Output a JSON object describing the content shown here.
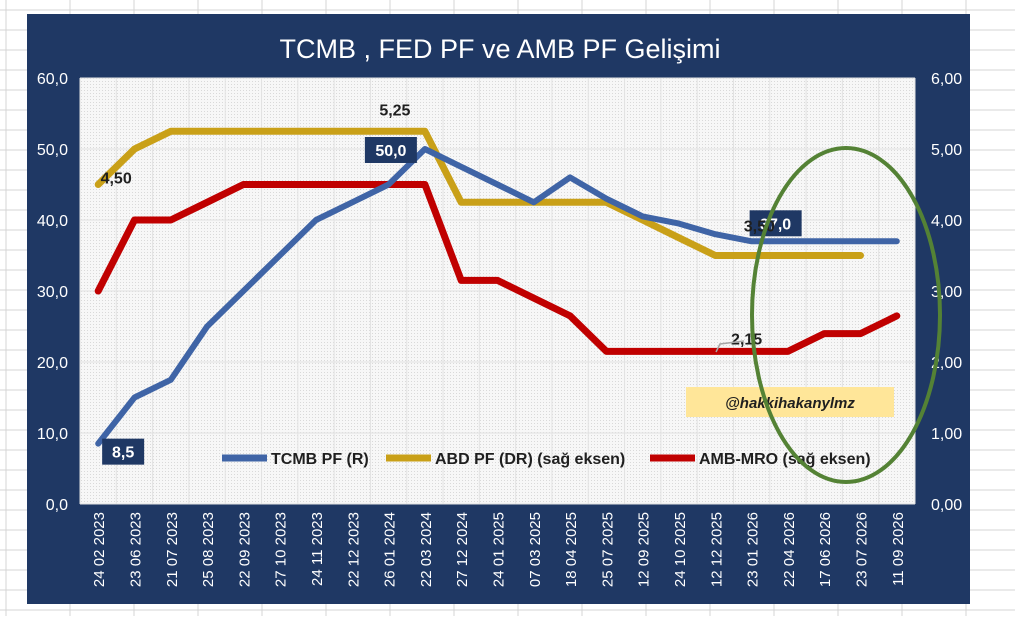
{
  "chart_data": {
    "type": "line",
    "title": "TCMB , FED PF ve AMB PF Gelişimi",
    "watermark": "@hakkihakanylmz",
    "categories": [
      "24 02 2023",
      "23 06 2023",
      "21 07 2023",
      "25 08 2023",
      "22 09 2023",
      "27 10 2023",
      "24 11 2023",
      "22 12 2023",
      "26 01 2024",
      "22 03 2024",
      "27 12 2024",
      "24 01 2025",
      "07 03 2025",
      "18 04 2025",
      "25 07 2025",
      "12 09 2025",
      "24 10 2025",
      "12 12 2025",
      "23 01 2026",
      "22 04 2026",
      "17 06 2026",
      "23 07 2026",
      "11 09 2026"
    ],
    "left_axis": {
      "min": 0,
      "max": 60,
      "ticks": [
        "0,0",
        "10,0",
        "20,0",
        "30,0",
        "40,0",
        "50,0",
        "60,0"
      ]
    },
    "right_axis": {
      "min": 0,
      "max": 6,
      "ticks": [
        "0,00",
        "1,00",
        "2,00",
        "3,00",
        "4,00",
        "5,00",
        "6,00"
      ]
    },
    "series": [
      {
        "name": "TCMB PF (R)",
        "axis": "left",
        "color": "#3f64a6",
        "values": [
          8.5,
          15,
          17.5,
          25,
          30,
          35,
          40,
          42.5,
          45,
          50,
          47.5,
          45,
          42.5,
          46,
          43,
          40.5,
          39.5,
          38,
          37,
          37,
          37,
          37,
          37
        ]
      },
      {
        "name": "ABD PF (DR) (sağ eksen)",
        "axis": "right",
        "color": "#c9a018",
        "values": [
          4.5,
          5.0,
          5.25,
          5.25,
          5.25,
          5.25,
          5.25,
          5.25,
          5.25,
          5.25,
          4.25,
          4.25,
          4.25,
          4.25,
          4.25,
          4.0,
          3.75,
          3.5,
          3.5,
          3.5,
          3.5,
          3.5,
          null
        ]
      },
      {
        "name": "AMB-MRO (sağ eksen)",
        "axis": "right",
        "color": "#c00000",
        "values": [
          3.0,
          4.0,
          4.0,
          4.25,
          4.5,
          4.5,
          4.5,
          4.5,
          4.5,
          4.5,
          3.15,
          3.15,
          2.9,
          2.65,
          2.15,
          2.15,
          2.15,
          2.15,
          2.15,
          2.15,
          2.4,
          2.4,
          2.65
        ]
      }
    ],
    "annotations": [
      {
        "series": 0,
        "index": 0,
        "text": "8,5",
        "boxed": true
      },
      {
        "series": 0,
        "index": 9,
        "text": "50,0",
        "boxed": true
      },
      {
        "series": 0,
        "index": 18,
        "text": "37,0",
        "boxed": true
      },
      {
        "series": 1,
        "index": 0,
        "text": "4,50",
        "boxed": false
      },
      {
        "series": 1,
        "index": 9,
        "text": "5,25",
        "boxed": false
      },
      {
        "series": 1,
        "index": 17,
        "text": "3,50",
        "boxed": false
      },
      {
        "series": 2,
        "index": 18,
        "text": "2,15",
        "boxed": false
      }
    ],
    "legend_position": "bottom-inside",
    "grid": true
  }
}
